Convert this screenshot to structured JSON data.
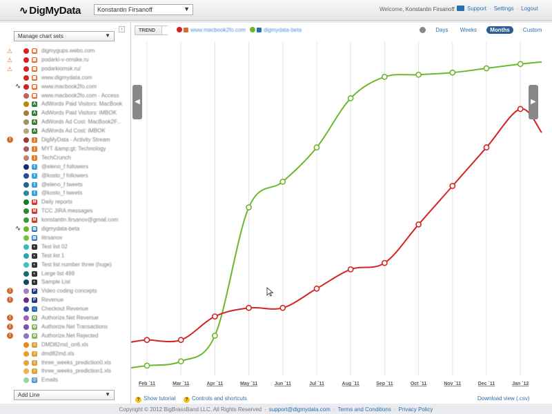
{
  "app": {
    "logo": "DigMyData"
  },
  "header": {
    "account": "Konstantin Firsanoff",
    "welcome_prefix": "Welcome,",
    "welcome_user": "Konstantin Firsanoff",
    "links": [
      "Support",
      "Settings",
      "Logout"
    ]
  },
  "sidebar": {
    "manage_label": "Manage chart sets",
    "add_line_label": "Add Line",
    "items": [
      {
        "label": "digmygups.webo.com",
        "status": "warn",
        "dot": "#d42222",
        "icon": "chart",
        "icon_color": "#e06a2a"
      },
      {
        "label": "podarki-v-omske.ru",
        "status": "warn",
        "dot": "#d42222",
        "icon": "chart",
        "icon_color": "#e06a2a"
      },
      {
        "label": "podarkiomsk.ru/",
        "status": "warn",
        "dot": "#d42222",
        "icon": "chart",
        "icon_color": "#e06a2a"
      },
      {
        "label": "www.digmydata.com",
        "status": "",
        "dot": "#d42222",
        "icon": "chart",
        "icon_color": "#e06a2a"
      },
      {
        "label": "www.macbook2fo.com",
        "status": "trend",
        "dot": "#d42222",
        "icon": "chart",
        "icon_color": "#e06a2a"
      },
      {
        "label": "www.macbook2fo.com - Access",
        "status": "",
        "dot": "#c06060",
        "icon": "chart",
        "icon_color": "#e06a2a"
      },
      {
        "label": "AdWords Paid Visitors: MacBook",
        "status": "",
        "dot": "#b8860b",
        "icon": "adwords",
        "icon_color": "#3a7a3a"
      },
      {
        "label": "AdWords Paid Visitors: iMBOK",
        "status": "",
        "dot": "#a08040",
        "icon": "adwords",
        "icon_color": "#3a7a3a"
      },
      {
        "label": "AdWords Ad Cost: MacBook2F...",
        "status": "",
        "dot": "#a09060",
        "icon": "adwords",
        "icon_color": "#3a7a3a"
      },
      {
        "label": "AdWords Ad Cost: iMBOK",
        "status": "",
        "dot": "#b0a878",
        "icon": "adwords",
        "icon_color": "#3a7a3a"
      },
      {
        "label": "DigMyData - Activity Stream",
        "status": "info",
        "dot": "#a03a3a",
        "icon": "rss",
        "icon_color": "#e07a2a"
      },
      {
        "label": "MYT &amp;gt; Technology",
        "status": "",
        "dot": "#a06060",
        "icon": "rss",
        "icon_color": "#e07a2a"
      },
      {
        "label": "TechCrunch",
        "status": "",
        "dot": "#c08070",
        "icon": "rss",
        "icon_color": "#e07a2a"
      },
      {
        "label": "@eleno_f followers",
        "status": "",
        "dot": "#1a2a7a",
        "icon": "twitter",
        "icon_color": "#3aa0e0"
      },
      {
        "label": "@kosto_f followers",
        "status": "",
        "dot": "#2a4a9a",
        "icon": "twitter",
        "icon_color": "#3aa0e0"
      },
      {
        "label": "@eleno_f tweets",
        "status": "",
        "dot": "#1a6a8a",
        "icon": "twitter",
        "icon_color": "#3aa0e0"
      },
      {
        "label": "@kosto_f tweets",
        "status": "",
        "dot": "#2a8a9a",
        "icon": "twitter",
        "icon_color": "#3aa0e0"
      },
      {
        "label": "Daily reports",
        "status": "",
        "dot": "#1a7a2a",
        "icon": "gmail",
        "icon_color": "#d03a2a"
      },
      {
        "label": "TCC JIRA messages",
        "status": "",
        "dot": "#2a8a3a",
        "icon": "gmail",
        "icon_color": "#d03a2a"
      },
      {
        "label": "konstantin.firsanov@gmail.com",
        "status": "",
        "dot": "#3a9a3a",
        "icon": "gmail",
        "icon_color": "#d03a2a"
      },
      {
        "label": "digmydata-beta",
        "status": "trend",
        "dot": "#6ab82a",
        "icon": "doc",
        "icon_color": "#2a6fb0"
      },
      {
        "label": "Iitrsanov",
        "status": "",
        "dot": "#7ac040",
        "icon": "doc",
        "icon_color": "#2a6fb0"
      },
      {
        "label": "Test list 02",
        "status": "",
        "dot": "#3ab8c0",
        "icon": "pie",
        "icon_color": "#333"
      },
      {
        "label": "Test list 1",
        "status": "",
        "dot": "#2aa8b0",
        "icon": "pie",
        "icon_color": "#333"
      },
      {
        "label": "Test list number three (huge)",
        "status": "",
        "dot": "#40c0c8",
        "icon": "pie",
        "icon_color": "#333"
      },
      {
        "label": "Large list 499",
        "status": "",
        "dot": "#1a6a7a",
        "icon": "pie",
        "icon_color": "#333"
      },
      {
        "label": "Sample List",
        "status": "",
        "dot": "#0a4a5a",
        "icon": "pie",
        "icon_color": "#333"
      },
      {
        "label": "Video coding concepts",
        "status": "info",
        "dot": "#b07ac0",
        "icon": "paypal",
        "icon_color": "#1a3a8a"
      },
      {
        "label": "Revenue",
        "status": "info",
        "dot": "#6a2a8a",
        "icon": "paypal",
        "icon_color": "#1a3a8a"
      },
      {
        "label": "Checkout Revenue",
        "status": "",
        "dot": "#3a4ab0",
        "icon": "cart",
        "icon_color": "#2a6fb0"
      },
      {
        "label": "Authorize.Net Revenue",
        "status": "info",
        "dot": "#a060c0",
        "icon": "auth",
        "icon_color": "#8ab060"
      },
      {
        "label": "Authorize.Net Transactions",
        "status": "info",
        "dot": "#8050b0",
        "icon": "auth",
        "icon_color": "#8ab060"
      },
      {
        "label": "Authorize.Net Rejected",
        "status": "info",
        "dot": "#9070c0",
        "icon": "auth",
        "icon_color": "#8ab060"
      },
      {
        "label": "DMD82md_on6.xls",
        "status": "",
        "dot": "#e88a1a",
        "icon": "sheet",
        "icon_color": "#e0a040"
      },
      {
        "label": "dmd82md.xls",
        "status": "",
        "dot": "#f09a2a",
        "icon": "sheet",
        "icon_color": "#e0a040"
      },
      {
        "label": "three_weeks_prediction0.xls",
        "status": "",
        "dot": "#e8a040",
        "icon": "sheet",
        "icon_color": "#e0a040"
      },
      {
        "label": "three_weeks_prediction1.xls",
        "status": "",
        "dot": "#f0b050",
        "icon": "sheet",
        "icon_color": "#e0a040"
      },
      {
        "label": "Emails",
        "status": "",
        "dot": "#90d8a0",
        "icon": "email",
        "icon_color": "#4a8ad0"
      }
    ]
  },
  "toolbar": {
    "trend_label": "TREND",
    "legend": [
      {
        "label": "www.macbook2fo.com",
        "color": "#d42222"
      },
      {
        "label": "digmydata-beta",
        "color": "#6ab82a"
      }
    ],
    "ranges": [
      "Days",
      "Weeks",
      "Months",
      "Custom"
    ],
    "active_range": "Months"
  },
  "chart_data": {
    "type": "line",
    "categories": [
      "Feb `11",
      "Mar `11",
      "Apr `11",
      "May `11",
      "Jun `11",
      "Jul `11",
      "Aug `11",
      "Sep `11",
      "Oct `11",
      "Nov `11",
      "Dec `11",
      "Jan `12"
    ],
    "series": [
      {
        "name": "www.macbook2fo.com",
        "color": "#d42222",
        "values": [
          13,
          13,
          24,
          28,
          28,
          37,
          46,
          49,
          67,
          85,
          103,
          121
        ]
      },
      {
        "name": "digmydata-beta",
        "color": "#6ab82a",
        "values": [
          1,
          3,
          15,
          75,
          87,
          103,
          126,
          136,
          137,
          138,
          140,
          142
        ]
      }
    ],
    "ylim": [
      0,
      150
    ],
    "grid": "vertical",
    "legend": "top-left"
  },
  "footer": {
    "tutorial": "Show tutorial",
    "controls": "Controls and shortcuts",
    "download": "Download view (.csv)"
  },
  "copyright": {
    "text": "Copyright © 2012 BigBrassBand LLC. All Rights Reserved",
    "email": "support@digmydata.com",
    "terms": "Terms and Conditions",
    "privacy": "Privacy Policy"
  }
}
